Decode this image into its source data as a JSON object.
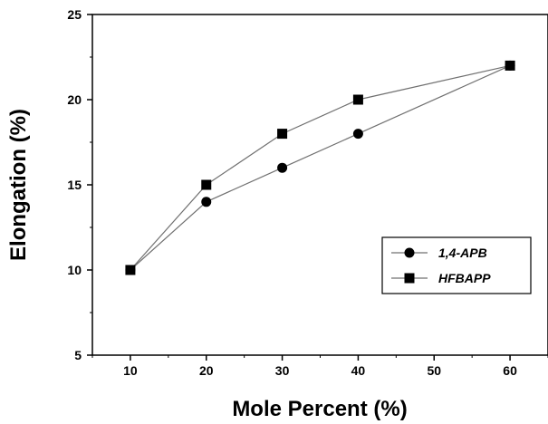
{
  "chart_data": {
    "type": "line",
    "title": "",
    "xlabel": "Mole Percent (%)",
    "ylabel": "Elongation (%)",
    "xlim": [
      5,
      65
    ],
    "ylim": [
      5,
      25
    ],
    "xticks": [
      10,
      20,
      30,
      40,
      50,
      60
    ],
    "yticks": [
      5,
      10,
      15,
      20,
      25
    ],
    "grid": false,
    "legend_position": "lower-right",
    "series": [
      {
        "name": "1,4-APB",
        "marker": "circle",
        "color": "#000000",
        "line_color": "#707070",
        "x": [
          10,
          20,
          30,
          40,
          60
        ],
        "y": [
          10,
          14,
          16,
          18,
          22
        ]
      },
      {
        "name": "HFBAPP",
        "marker": "square",
        "color": "#000000",
        "line_color": "#707070",
        "x": [
          10,
          20,
          30,
          40,
          60
        ],
        "y": [
          10,
          15,
          18,
          20,
          22
        ]
      }
    ]
  }
}
